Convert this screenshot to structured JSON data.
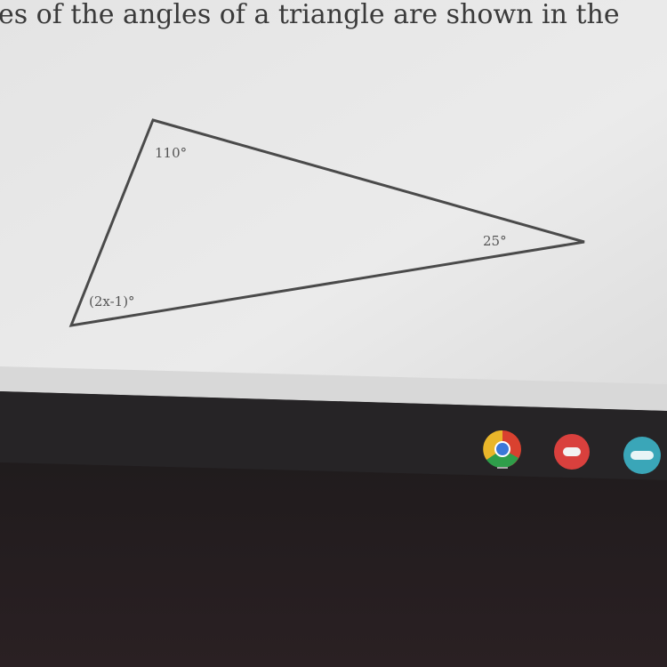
{
  "question": {
    "text": "es of the angles of a triangle are shown in the"
  },
  "diagram": {
    "angle_labels": [
      "110°",
      "25°",
      "(2x-1)°"
    ]
  }
}
